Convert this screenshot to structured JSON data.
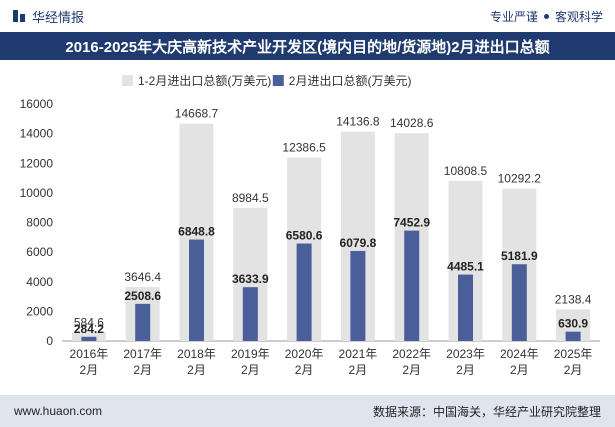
{
  "header": {
    "brand": "华经情报",
    "tagline_left": "专业严谨",
    "tagline_right": "客观科学"
  },
  "title": "2016-2025年大庆高新技术产业开发区(境内目的地/货源地)2月进出口总额",
  "footer": {
    "url": "www.huaon.com",
    "source": "数据来源：中国海关，华经产业研究院整理"
  },
  "colors": {
    "series1": "#e3e3e3",
    "series2": "#4a5f9a",
    "header": "#1f3a6e"
  },
  "chart_data": {
    "type": "bar",
    "categories": [
      "2016年\n2月",
      "2017年\n2月",
      "2018年\n2月",
      "2019年\n2月",
      "2020年\n2月",
      "2021年\n2月",
      "2022年\n2月",
      "2023年\n2月",
      "2024年\n2月",
      "2025年\n2月"
    ],
    "series": [
      {
        "name": "1-2月进出口总额(万美元)",
        "values": [
          584.6,
          3646.4,
          14668.7,
          8984.5,
          12386.5,
          14136.8,
          14028.6,
          10808.5,
          10292.2,
          2138.4
        ]
      },
      {
        "name": "2月进出口总额(万美元)",
        "values": [
          284.2,
          2508.6,
          6848.8,
          3633.9,
          6580.6,
          6079.8,
          7452.9,
          4485.1,
          5181.9,
          630.9
        ]
      }
    ],
    "ylim": [
      0,
      16000
    ],
    "yticks": [
      0,
      2000,
      4000,
      6000,
      8000,
      10000,
      12000,
      14000,
      16000
    ],
    "legend": "top-left",
    "grid": false
  }
}
